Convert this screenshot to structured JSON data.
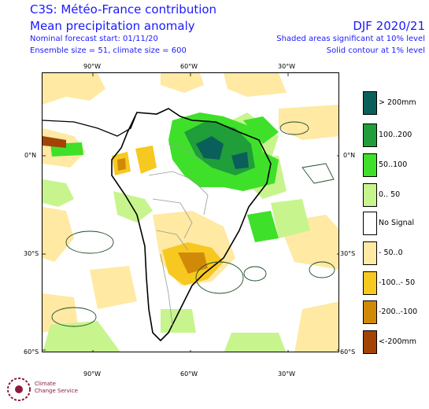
{
  "header": {
    "brand": "C3S: Météo-France contribution",
    "subtitle": "Mean precipitation anomaly",
    "forecast_start": "Nominal forecast start: 01/11/20",
    "ensemble": "Ensemble size = 51, climate size = 600",
    "season": "DJF 2020/21",
    "shading_note": "Shaded areas significant at 10% level",
    "contour_note": "Solid contour at 1% level"
  },
  "axes": {
    "lon_top": [
      "90°W",
      "60°W",
      "30°W"
    ],
    "lon_bottom": [
      "90°W",
      "60°W",
      "30°W"
    ],
    "lat_left": [
      "0°N",
      "30°S",
      "60°S"
    ],
    "lat_right": [
      "0°N",
      "30°S",
      "60°S"
    ]
  },
  "legend": [
    {
      "label": "> 200mm",
      "color": "#0b5f5a"
    },
    {
      "label": "100..200",
      "color": "#1f9e3a"
    },
    {
      "label": "50..100",
      "color": "#3fe02a"
    },
    {
      "label": "0.. 50",
      "color": "#c8f48e"
    },
    {
      "label": "No Signal",
      "color": "#ffffff"
    },
    {
      "label": "- 50..0",
      "color": "#ffe9a3"
    },
    {
      "label": "-100..- 50",
      "color": "#f7c820"
    },
    {
      "label": "-200..-100",
      "color": "#d08a08"
    },
    {
      "label": "<-200mm",
      "color": "#a34406"
    }
  ],
  "logo": {
    "text_line1": "Climate",
    "text_line2": "Change Service"
  }
}
